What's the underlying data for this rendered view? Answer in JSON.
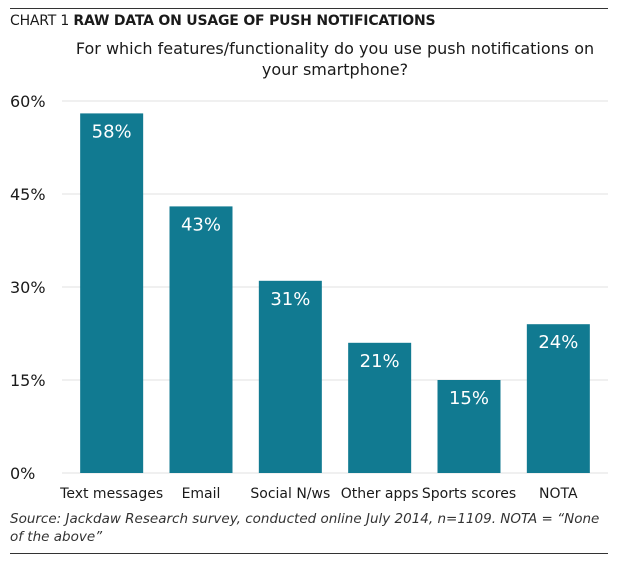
{
  "header": {
    "prefix": "CHART 1",
    "heading": "RAW DATA ON USAGE OF PUSH NOTIFICATIONS"
  },
  "source_note": "Source: Jackdaw Research survey, conducted online July 2014, n=1109. NOTA = “None of the above”",
  "colors": {
    "bar": "#117a91",
    "gridline": "#e0e0e0",
    "bar_label": "#ffffff"
  },
  "chart_data": {
    "type": "bar",
    "title": "For which features/functionality do you use push notifications on your smartphone?",
    "categories": [
      "Text messages",
      "Email",
      "Social N/ws",
      "Other apps",
      "Sports scores",
      "NOTA"
    ],
    "values": [
      58,
      43,
      31,
      21,
      15,
      24
    ],
    "value_labels": [
      "58%",
      "43%",
      "31%",
      "21%",
      "15%",
      "24%"
    ],
    "yticks": [
      0,
      15,
      30,
      45,
      60
    ],
    "ytick_labels": [
      "0%",
      "15%",
      "30%",
      "45%",
      "60%"
    ],
    "ylim": [
      0,
      60
    ],
    "xlabel": "",
    "ylabel": "",
    "grid": true,
    "legend": "none"
  }
}
